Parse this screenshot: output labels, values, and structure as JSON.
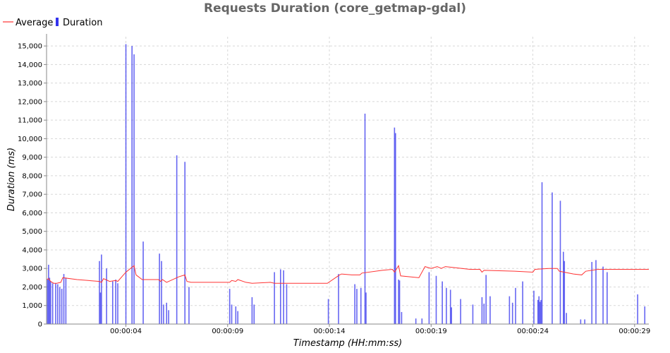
{
  "colors": {
    "average": "#ff3333",
    "duration": "#3333ee",
    "axis": "#888888"
  },
  "chart_data": {
    "type": "bar",
    "title": "Requests Duration (core_getmap-gdal)",
    "xlabel": "Timestamp (HH:mm:ss)",
    "ylabel": "Duration (ms)",
    "legend_position": "top-left",
    "grid": true,
    "xlim": [
      0.0,
      29.6
    ],
    "ylim": [
      0,
      15500
    ],
    "x_ticks": [
      {
        "value": 3.9,
        "label": "00:00:04"
      },
      {
        "value": 8.9,
        "label": "00:00:09"
      },
      {
        "value": 13.9,
        "label": "00:00:14"
      },
      {
        "value": 18.9,
        "label": "00:00:19"
      },
      {
        "value": 23.9,
        "label": "00:00:24"
      },
      {
        "value": 28.9,
        "label": "00:00:29"
      }
    ],
    "y_ticks": [
      0,
      1000,
      2000,
      3000,
      4000,
      5000,
      6000,
      7000,
      8000,
      9000,
      10000,
      11000,
      12000,
      13000,
      14000,
      15000
    ],
    "y_tick_labels": [
      "0",
      "1,000",
      "2,000",
      "3,000",
      "4,000",
      "5,000",
      "6,000",
      "7,000",
      "8,000",
      "9,000",
      "10,000",
      "11,000",
      "12,000",
      "13,000",
      "14,000",
      "15,000"
    ],
    "series": [
      {
        "name": "Average",
        "type": "line",
        "points": [
          [
            0.0,
            2400
          ],
          [
            0.1,
            2450
          ],
          [
            0.2,
            2300
          ],
          [
            0.35,
            2200
          ],
          [
            0.5,
            2200
          ],
          [
            0.7,
            2250
          ],
          [
            0.8,
            2500
          ],
          [
            1.5,
            2400
          ],
          [
            2.6,
            2300
          ],
          [
            2.7,
            2250
          ],
          [
            2.8,
            2450
          ],
          [
            3.1,
            2300
          ],
          [
            3.4,
            2350
          ],
          [
            3.5,
            2300
          ],
          [
            3.9,
            2800
          ],
          [
            4.3,
            3150
          ],
          [
            4.4,
            2650
          ],
          [
            4.7,
            2400
          ],
          [
            5.5,
            2400
          ],
          [
            5.6,
            2300
          ],
          [
            5.7,
            2400
          ],
          [
            5.9,
            2250
          ],
          [
            6.5,
            2550
          ],
          [
            6.8,
            2650
          ],
          [
            6.9,
            2300
          ],
          [
            7.1,
            2250
          ],
          [
            9.0,
            2250
          ],
          [
            9.1,
            2350
          ],
          [
            9.3,
            2300
          ],
          [
            9.4,
            2400
          ],
          [
            9.8,
            2250
          ],
          [
            10.1,
            2200
          ],
          [
            11.0,
            2250
          ],
          [
            11.2,
            2200
          ],
          [
            13.8,
            2200
          ],
          [
            14.4,
            2650
          ],
          [
            14.5,
            2700
          ],
          [
            15.0,
            2650
          ],
          [
            15.4,
            2650
          ],
          [
            15.5,
            2750
          ],
          [
            16.5,
            2900
          ],
          [
            17.0,
            2950
          ],
          [
            17.1,
            2800
          ],
          [
            17.3,
            3150
          ],
          [
            17.4,
            2600
          ],
          [
            18.3,
            2500
          ],
          [
            18.6,
            3100
          ],
          [
            18.9,
            3000
          ],
          [
            19.2,
            3100
          ],
          [
            19.4,
            3000
          ],
          [
            19.6,
            3100
          ],
          [
            20.8,
            2950
          ],
          [
            21.3,
            2950
          ],
          [
            21.4,
            2800
          ],
          [
            21.5,
            2900
          ],
          [
            23.0,
            2850
          ],
          [
            23.9,
            2800
          ],
          [
            24.0,
            2950
          ],
          [
            24.7,
            3000
          ],
          [
            25.1,
            3000
          ],
          [
            25.2,
            2850
          ],
          [
            25.9,
            2700
          ],
          [
            26.3,
            2650
          ],
          [
            26.5,
            2850
          ],
          [
            27.1,
            2950
          ],
          [
            29.6,
            2950
          ]
        ]
      },
      {
        "name": "Duration",
        "type": "bar",
        "points": [
          [
            0.05,
            2400
          ],
          [
            0.1,
            3200
          ],
          [
            0.15,
            2500
          ],
          [
            0.2,
            2300
          ],
          [
            0.3,
            2200
          ],
          [
            0.45,
            2200
          ],
          [
            0.55,
            2150
          ],
          [
            0.65,
            2000
          ],
          [
            0.75,
            1900
          ],
          [
            0.85,
            2700
          ],
          [
            0.95,
            2500
          ],
          [
            2.6,
            3400
          ],
          [
            2.65,
            1700
          ],
          [
            2.7,
            3750
          ],
          [
            2.95,
            3000
          ],
          [
            3.25,
            2300
          ],
          [
            3.4,
            2400
          ],
          [
            3.5,
            2200
          ],
          [
            3.9,
            15100
          ],
          [
            4.2,
            15000
          ],
          [
            4.3,
            14550
          ],
          [
            4.75,
            4450
          ],
          [
            5.55,
            3800
          ],
          [
            5.65,
            3400
          ],
          [
            5.75,
            1050
          ],
          [
            5.9,
            1150
          ],
          [
            6.0,
            750
          ],
          [
            6.4,
            9100
          ],
          [
            6.8,
            8750
          ],
          [
            7.0,
            2000
          ],
          [
            9.0,
            1900
          ],
          [
            9.1,
            1050
          ],
          [
            9.3,
            950
          ],
          [
            9.4,
            700
          ],
          [
            10.1,
            1450
          ],
          [
            10.2,
            1050
          ],
          [
            11.2,
            2800
          ],
          [
            11.5,
            2950
          ],
          [
            11.65,
            2900
          ],
          [
            11.8,
            2150
          ],
          [
            13.85,
            1350
          ],
          [
            14.35,
            2700
          ],
          [
            15.15,
            2150
          ],
          [
            15.25,
            1900
          ],
          [
            15.45,
            1950
          ],
          [
            15.65,
            11350
          ],
          [
            15.7,
            1700
          ],
          [
            17.1,
            10600
          ],
          [
            17.15,
            10300
          ],
          [
            17.3,
            2400
          ],
          [
            17.35,
            2350
          ],
          [
            17.45,
            650
          ],
          [
            18.15,
            300
          ],
          [
            18.45,
            300
          ],
          [
            18.8,
            2800
          ],
          [
            19.15,
            2600
          ],
          [
            19.45,
            2300
          ],
          [
            19.65,
            1950
          ],
          [
            19.85,
            1850
          ],
          [
            19.9,
            900
          ],
          [
            20.35,
            1350
          ],
          [
            20.95,
            1050
          ],
          [
            21.4,
            1450
          ],
          [
            21.5,
            1100
          ],
          [
            21.6,
            2650
          ],
          [
            21.8,
            1500
          ],
          [
            22.75,
            1500
          ],
          [
            22.9,
            1150
          ],
          [
            23.05,
            1950
          ],
          [
            23.4,
            2300
          ],
          [
            23.95,
            1800
          ],
          [
            24.15,
            1300
          ],
          [
            24.2,
            1500
          ],
          [
            24.25,
            1200
          ],
          [
            24.3,
            1300
          ],
          [
            24.35,
            7650
          ],
          [
            24.85,
            7100
          ],
          [
            25.25,
            6650
          ],
          [
            25.4,
            3900
          ],
          [
            25.45,
            3400
          ],
          [
            25.55,
            600
          ],
          [
            26.25,
            250
          ],
          [
            26.45,
            250
          ],
          [
            26.8,
            3350
          ],
          [
            27.0,
            3450
          ],
          [
            27.35,
            3100
          ],
          [
            27.55,
            2800
          ],
          [
            29.05,
            1600
          ],
          [
            29.4,
            950
          ]
        ]
      }
    ]
  }
}
